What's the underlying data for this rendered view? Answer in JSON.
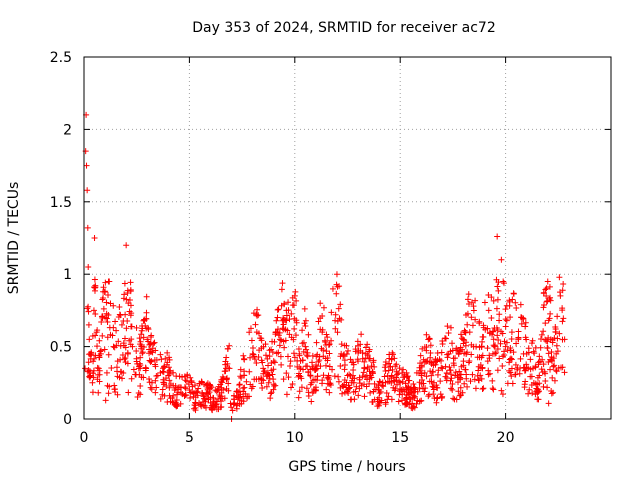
{
  "chart_data": {
    "type": "scatter",
    "title": "Day 353 of 2024, SRMTID for receiver ac72",
    "xlabel": "GPS time / hours",
    "ylabel": "SRMTID / TECUs",
    "xlim": [
      0,
      25
    ],
    "ylim": [
      0,
      2.5
    ],
    "grid": true,
    "marker": "+",
    "color": "#ff0000",
    "x_ticks": [
      {
        "value": 0,
        "label": "0"
      },
      {
        "value": 5,
        "label": "5"
      },
      {
        "value": 10,
        "label": "10"
      },
      {
        "value": 15,
        "label": "15"
      },
      {
        "value": 20,
        "label": "20"
      }
    ],
    "y_ticks": [
      {
        "value": 0,
        "label": "0"
      },
      {
        "value": 0.5,
        "label": "0.5"
      },
      {
        "value": 1,
        "label": "1"
      },
      {
        "value": 1.5,
        "label": "1.5"
      },
      {
        "value": 2,
        "label": "2"
      },
      {
        "value": 2.5,
        "label": "2.5"
      }
    ],
    "x_range_hours": [
      0,
      22.8
    ],
    "series": [
      {
        "name": "SRMTID",
        "x": [
          0.05,
          0.08,
          0.1,
          0.12,
          0.15,
          0.18,
          0.2,
          0.25,
          0.3,
          0.35,
          0.4,
          0.5,
          0.6,
          0.7,
          0.8,
          1.0,
          1.2,
          1.4,
          1.6,
          1.8,
          2.0,
          2.1,
          2.3,
          2.6,
          3.0,
          3.2,
          3.5,
          3.8,
          4.0,
          4.3,
          4.6,
          5.0,
          5.3,
          5.6,
          6.0,
          6.3,
          6.6,
          6.9,
          7.0,
          7.1,
          7.3,
          7.6,
          8.0,
          8.2,
          8.5,
          8.8,
          9.0,
          9.3,
          9.6,
          9.8,
          10.0,
          10.2,
          10.5,
          10.8,
          11.0,
          11.3,
          11.6,
          12.0,
          12.2,
          12.5,
          12.8,
          13.0,
          13.3,
          13.6,
          14.0,
          14.3,
          14.6,
          15.0,
          15.3,
          15.6,
          16.0,
          16.3,
          16.6,
          17.0,
          17.3,
          17.6,
          18.0,
          18.3,
          18.6,
          18.9,
          19.2,
          19.4,
          19.6,
          19.8,
          20.0,
          20.3,
          20.6,
          21.0,
          21.3,
          21.6,
          22.0,
          22.2,
          22.4,
          22.6,
          22.8
        ],
        "y": [
          0.35,
          1.85,
          2.1,
          1.75,
          1.58,
          1.32,
          1.05,
          0.55,
          0.3,
          0.45,
          0.25,
          1.25,
          0.6,
          0.35,
          0.45,
          0.7,
          0.95,
          0.5,
          0.4,
          0.65,
          1.2,
          0.8,
          0.5,
          0.35,
          0.55,
          0.4,
          0.3,
          0.25,
          0.3,
          0.2,
          0.18,
          0.2,
          0.15,
          0.18,
          0.15,
          0.12,
          0.2,
          0.35,
          0.0,
          0.1,
          0.15,
          0.3,
          0.45,
          0.6,
          0.35,
          0.3,
          0.4,
          0.55,
          0.75,
          0.4,
          0.85,
          0.3,
          0.5,
          0.25,
          0.35,
          0.6,
          0.3,
          1.0,
          0.45,
          0.3,
          0.25,
          0.4,
          0.35,
          0.3,
          0.2,
          0.25,
          0.3,
          0.25,
          0.2,
          0.15,
          0.3,
          0.4,
          0.25,
          0.35,
          0.45,
          0.3,
          0.4,
          0.6,
          0.5,
          0.35,
          0.75,
          0.45,
          1.26,
          1.1,
          0.5,
          0.6,
          0.55,
          0.45,
          0.35,
          0.3,
          0.95,
          0.4,
          0.45,
          0.85,
          0.55
        ]
      }
    ]
  }
}
